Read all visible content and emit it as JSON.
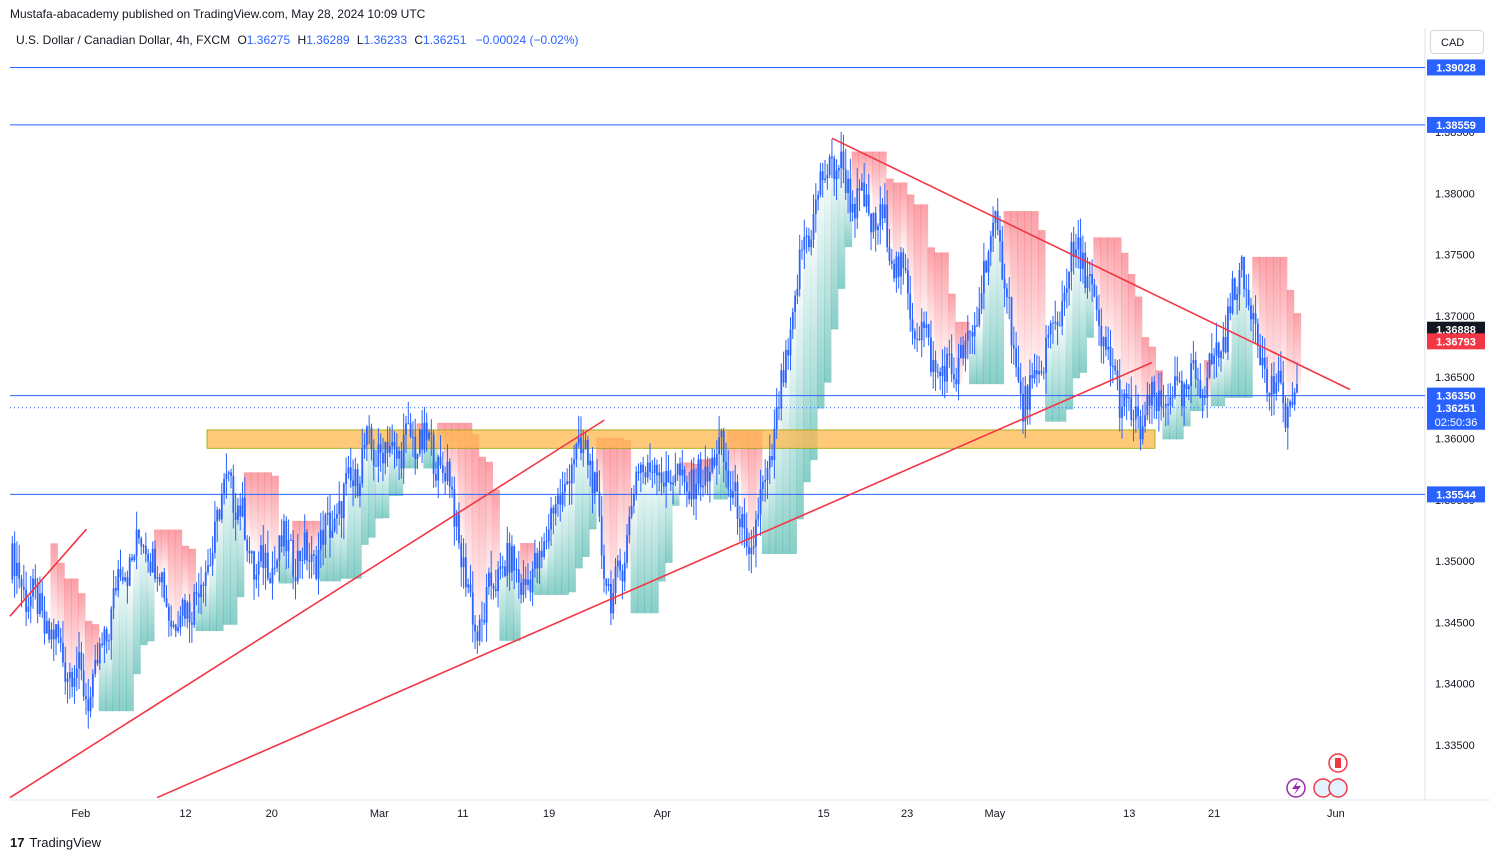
{
  "header": {
    "published": "Mustafa-abacademy published on TradingView.com, May 28, 2024 10:09 UTC"
  },
  "legend": {
    "symbol": "U.S. Dollar / Canadian Dollar, 4h, FXCM",
    "open_label": "O",
    "open": "1.36275",
    "high_label": "H",
    "high": "1.36289",
    "low_label": "L",
    "low": "1.36233",
    "close_label": "C",
    "close": "1.36251",
    "change": "−0.00024 (−0.02%)"
  },
  "currency_button": {
    "label": "CAD"
  },
  "branding": {
    "label": "TradingView",
    "logo": "17"
  },
  "colors": {
    "candle_blue": "#2962ff",
    "hline": "#2962ff",
    "trendline": "#f23645",
    "zone_fill": "#ffb74d",
    "cloud_green": "#26a69a",
    "cloud_red": "#f7525f"
  },
  "chart_data": {
    "type": "line",
    "title": "",
    "xlabel": "",
    "ylabel": "",
    "ylim": [
      1.3305,
      1.3935
    ],
    "x_ticks": [
      "Feb",
      "12",
      "20",
      "Mar",
      "11",
      "19",
      "Apr",
      "15",
      "23",
      "May",
      "13",
      "21",
      "Jun"
    ],
    "y_ticks": [
      "1.33500",
      "1.34000",
      "1.34500",
      "1.35000",
      "1.35500",
      "1.36000",
      "1.36500",
      "1.37000",
      "1.37500",
      "1.38000",
      "1.38500"
    ],
    "price_series_approx": {
      "name": "",
      "x": [
        "Jan 24",
        "Jan 26",
        "Jan 30",
        "Feb 1",
        "Feb 5",
        "Feb 7",
        "Feb 9",
        "Feb 13",
        "Feb 15",
        "Feb 19",
        "Feb 21",
        "Feb 23",
        "Feb 27",
        "Feb 29",
        "Mar 1",
        "Mar 5",
        "Mar 7",
        "Mar 11",
        "Mar 13",
        "Mar 15",
        "Mar 19",
        "Mar 20",
        "Mar 22",
        "Mar 26",
        "Mar 28",
        "Apr 1",
        "Apr 3",
        "Apr 5",
        "Apr 9",
        "Apr 11",
        "Apr 16",
        "Apr 18",
        "Apr 22",
        "Apr 24",
        "Apr 26",
        "Apr 30",
        "May 2",
        "May 3",
        "May 7",
        "May 9",
        "May 13",
        "May 15",
        "May 17",
        "May 20",
        "May 22",
        "May 24",
        "May 27",
        "May 28"
      ],
      "y": [
        1.35,
        1.346,
        1.342,
        1.339,
        1.349,
        1.352,
        1.345,
        1.348,
        1.357,
        1.349,
        1.351,
        1.35,
        1.354,
        1.359,
        1.359,
        1.36,
        1.357,
        1.344,
        1.35,
        1.348,
        1.355,
        1.36,
        1.346,
        1.358,
        1.357,
        1.356,
        1.359,
        1.35,
        1.361,
        1.376,
        1.383,
        1.379,
        1.377,
        1.37,
        1.365,
        1.367,
        1.378,
        1.362,
        1.368,
        1.376,
        1.367,
        1.361,
        1.363,
        1.364,
        1.366,
        1.374,
        1.364,
        1.3625
      ]
    },
    "horizontal_levels": [
      {
        "label": "1.39028",
        "value": 1.39028
      },
      {
        "label": "1.38559",
        "value": 1.38559
      },
      {
        "label": "1.36350",
        "value": 1.3635
      },
      {
        "label": "1.35544",
        "value": 1.35544
      }
    ],
    "price_tags": [
      {
        "label": "1.36888",
        "value": 1.36888,
        "style": "dark"
      },
      {
        "label": "1.36793",
        "value": 1.36793,
        "style": "red"
      },
      {
        "label": "1.36251",
        "value": 1.36251,
        "style": "blue",
        "countdown": "02:50:36"
      }
    ],
    "zone": {
      "y_top": 1.3607,
      "y_bottom": 1.3592
    },
    "trendlines": [
      {
        "from": [
          0.0,
          1.3455
        ],
        "to": [
          0.054,
          1.3526
        ]
      },
      {
        "from": [
          0.0,
          1.3307
        ],
        "to": [
          0.42,
          1.3615
        ]
      },
      {
        "from": [
          0.104,
          1.3307
        ],
        "to": [
          0.807,
          1.3662
        ]
      },
      {
        "from": [
          0.581,
          1.3845
        ],
        "to": [
          0.947,
          1.364
        ]
      }
    ]
  }
}
